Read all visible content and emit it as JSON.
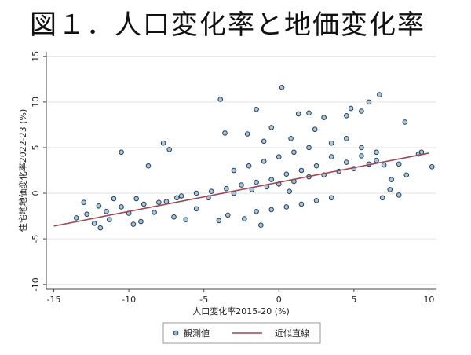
{
  "page_title": "図１．人口変化率と地価変化率",
  "chart_data": {
    "type": "scatter",
    "xlabel": "人口変化率2015-20 (%)",
    "ylabel": "住宅地地価変化率2022-23 (%)",
    "xlim": [
      -15.5,
      10.5
    ],
    "ylim": [
      -10.5,
      15.5
    ],
    "xticks": [
      -15,
      -10,
      -5,
      0,
      5,
      10
    ],
    "yticks": [
      -10,
      -5,
      0,
      5,
      10,
      15
    ],
    "grid": "horizontal",
    "legend_placement": "bottom",
    "series": [
      {
        "name": "観測値",
        "kind": "scatter",
        "marker": "hollow-circle",
        "color": "#1f3f5f",
        "fill": "#8fb1c9",
        "points": [
          [
            -10.5,
            4.5
          ],
          [
            -7.7,
            5.5
          ],
          [
            -7.3,
            4.8
          ],
          [
            -8.7,
            3.0
          ],
          [
            -3.9,
            10.3
          ],
          [
            -1.5,
            9.2
          ],
          [
            0.2,
            11.6
          ],
          [
            3.0,
            8.3
          ],
          [
            4.5,
            8.5
          ],
          [
            4.8,
            9.3
          ],
          [
            5.5,
            9.0
          ],
          [
            6.0,
            10.0
          ],
          [
            6.7,
            10.8
          ],
          [
            1.3,
            8.7
          ],
          [
            2.0,
            8.8
          ],
          [
            -0.5,
            7.2
          ],
          [
            -2.1,
            6.5
          ],
          [
            -3.6,
            6.6
          ],
          [
            -1.0,
            5.7
          ],
          [
            0.8,
            6.0
          ],
          [
            2.4,
            7.0
          ],
          [
            8.4,
            7.8
          ],
          [
            9.3,
            4.3
          ],
          [
            10.2,
            2.9
          ],
          [
            8.0,
            3.2
          ],
          [
            7.4,
            0.4
          ],
          [
            6.9,
            -0.5
          ],
          [
            8.0,
            -0.2
          ],
          [
            0.7,
            0.2
          ],
          [
            -1.2,
            -3.5
          ],
          [
            -2.3,
            -2.8
          ],
          [
            -9.2,
            -3.1
          ],
          [
            -11.9,
            -3.8
          ],
          [
            -13.5,
            -2.7
          ],
          [
            -12.3,
            -3.3
          ],
          [
            -6.2,
            -2.9
          ],
          [
            -3.4,
            -2.4
          ],
          [
            -5.5,
            -1.7
          ],
          [
            -8.3,
            -2.1
          ],
          [
            -10.0,
            -2.2
          ],
          [
            -12.0,
            -1.4
          ],
          [
            -13.0,
            -1.0
          ],
          [
            -11.0,
            -0.6
          ],
          [
            -9.5,
            -0.6
          ],
          [
            -7.5,
            -0.9
          ],
          [
            -6.5,
            -0.3
          ],
          [
            -4.7,
            -0.5
          ],
          [
            -3.0,
            0.0
          ],
          [
            -1.8,
            0.4
          ],
          [
            -0.8,
            0.7
          ],
          [
            0.0,
            1.0
          ],
          [
            1.0,
            1.3
          ],
          [
            2.0,
            1.8
          ],
          [
            3.0,
            2.0
          ],
          [
            4.0,
            2.4
          ],
          [
            5.0,
            2.7
          ],
          [
            6.0,
            3.2
          ],
          [
            6.5,
            3.6
          ],
          [
            7.0,
            3.1
          ],
          [
            5.5,
            4.1
          ],
          [
            4.5,
            3.4
          ],
          [
            3.5,
            4.0
          ],
          [
            2.5,
            3.0
          ],
          [
            1.5,
            2.5
          ],
          [
            0.5,
            2.1
          ],
          [
            -0.5,
            1.5
          ],
          [
            -1.5,
            1.2
          ],
          [
            -2.5,
            0.9
          ],
          [
            -3.5,
            0.5
          ],
          [
            -4.5,
            0.2
          ],
          [
            -5.5,
            0.0
          ],
          [
            -6.8,
            -0.5
          ],
          [
            -8.0,
            -1.0
          ],
          [
            -9.0,
            -1.2
          ],
          [
            -10.5,
            -1.5
          ],
          [
            -11.5,
            -2.0
          ],
          [
            -12.8,
            -2.3
          ],
          [
            -3.0,
            2.5
          ],
          [
            -2.0,
            3.0
          ],
          [
            -1.0,
            3.5
          ],
          [
            0.0,
            4.0
          ],
          [
            1.0,
            4.5
          ],
          [
            2.0,
            5.0
          ],
          [
            3.5,
            5.5
          ],
          [
            4.5,
            6.0
          ],
          [
            5.5,
            5.0
          ],
          [
            6.5,
            4.5
          ],
          [
            7.5,
            1.5
          ],
          [
            8.5,
            2.0
          ],
          [
            9.5,
            4.5
          ],
          [
            3.5,
            -0.5
          ],
          [
            2.5,
            -0.8
          ],
          [
            1.5,
            -1.2
          ],
          [
            0.5,
            -1.5
          ],
          [
            -0.5,
            -1.8
          ],
          [
            -1.5,
            -2.0
          ],
          [
            -4.0,
            -3.0
          ],
          [
            -7.0,
            -2.6
          ],
          [
            -9.7,
            -3.4
          ],
          [
            -11.3,
            -2.9
          ]
        ]
      },
      {
        "name": "近似直線",
        "kind": "line",
        "color": "#a0464e",
        "x": [
          -15.0,
          10.0
        ],
        "y": [
          -3.6,
          4.4
        ]
      }
    ]
  }
}
